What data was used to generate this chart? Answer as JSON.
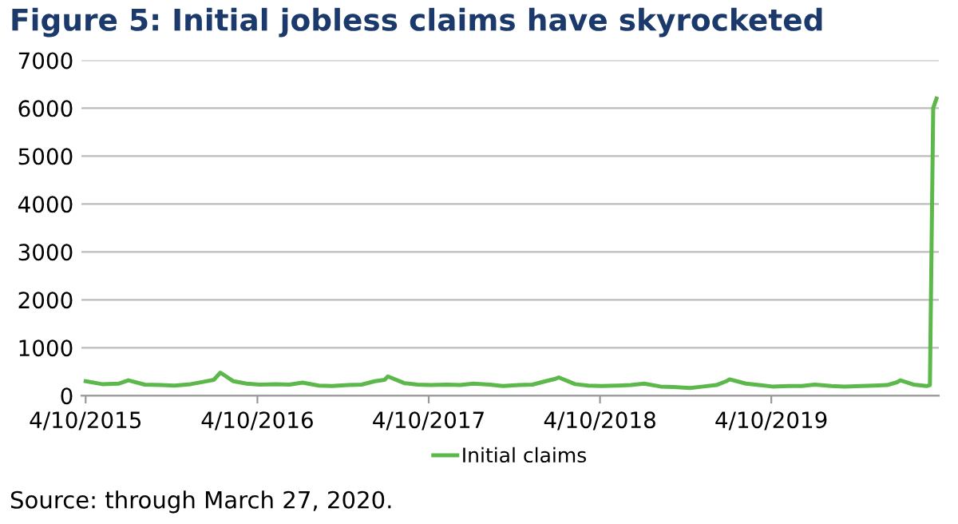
{
  "chart_data": {
    "type": "line",
    "title": "Figure 5: Initial jobless claims have skyrocketed",
    "x": [
      "2015-04-10",
      "2015-05-15",
      "2015-06-19",
      "2015-07-10",
      "2015-08-14",
      "2015-09-18",
      "2015-10-16",
      "2015-11-20",
      "2015-12-18",
      "2016-01-08",
      "2016-01-22",
      "2016-02-19",
      "2016-03-18",
      "2016-04-15",
      "2016-05-20",
      "2016-06-17",
      "2016-07-15",
      "2016-08-19",
      "2016-09-16",
      "2016-10-21",
      "2016-11-18",
      "2016-12-16",
      "2017-01-06",
      "2017-01-13",
      "2017-02-17",
      "2017-03-17",
      "2017-04-14",
      "2017-05-19",
      "2017-06-16",
      "2017-07-14",
      "2017-08-18",
      "2017-09-15",
      "2017-10-20",
      "2017-11-17",
      "2017-12-15",
      "2018-01-05",
      "2018-01-12",
      "2018-02-16",
      "2018-03-16",
      "2018-04-13",
      "2018-05-18",
      "2018-06-15",
      "2018-07-13",
      "2018-08-17",
      "2018-09-14",
      "2018-10-19",
      "2018-11-16",
      "2018-12-14",
      "2019-01-04",
      "2019-01-11",
      "2019-02-15",
      "2019-03-15",
      "2019-04-12",
      "2019-05-17",
      "2019-06-14",
      "2019-07-12",
      "2019-08-16",
      "2019-09-13",
      "2019-10-18",
      "2019-11-15",
      "2019-12-13",
      "2020-01-03",
      "2020-01-10",
      "2020-02-07",
      "2020-03-06",
      "2020-03-13",
      "2020-03-20",
      "2020-03-27"
    ],
    "series": [
      {
        "name": "Initial claims",
        "color": "#5cb84a",
        "values": [
          300,
          240,
          250,
          320,
          230,
          220,
          210,
          240,
          290,
          330,
          480,
          300,
          250,
          230,
          240,
          230,
          270,
          210,
          200,
          220,
          230,
          300,
          330,
          400,
          260,
          230,
          220,
          230,
          220,
          250,
          230,
          200,
          220,
          230,
          300,
          350,
          380,
          240,
          210,
          200,
          210,
          220,
          250,
          190,
          180,
          160,
          190,
          220,
          300,
          340,
          250,
          220,
          190,
          200,
          200,
          230,
          200,
          190,
          200,
          210,
          220,
          280,
          320,
          230,
          200,
          220,
          6000,
          6200
        ]
      }
    ],
    "xlim": [
      "2015-04-01",
      "2020-04-01"
    ],
    "xticks": [
      {
        "value": "2015-04-10",
        "label": "4/10/2015"
      },
      {
        "value": "2016-04-10",
        "label": "4/10/2016"
      },
      {
        "value": "2017-04-10",
        "label": "4/10/2017"
      },
      {
        "value": "2018-04-10",
        "label": "4/10/2018"
      },
      {
        "value": "2019-04-10",
        "label": "4/10/2019"
      }
    ],
    "ylim": [
      0,
      7000
    ],
    "yticks": [
      0,
      1000,
      2000,
      3000,
      4000,
      5000,
      6000,
      7000
    ],
    "grid": "y",
    "legend": "bottom",
    "annotations": [
      "Source: through March 27, 2020."
    ]
  }
}
